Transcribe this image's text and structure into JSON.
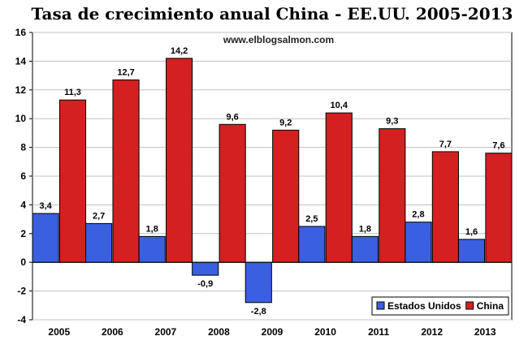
{
  "chart_data": {
    "type": "bar",
    "title": "Tasa de crecimiento anual China - EE.UU. 2005-2013",
    "watermark": "www.elblogsalmon.com",
    "categories": [
      "2005",
      "2006",
      "2007",
      "2008",
      "2009",
      "2010",
      "2011",
      "2012",
      "2013"
    ],
    "series": [
      {
        "name": "Estados Unidos",
        "color": "#3a5fe0",
        "values": [
          3.4,
          2.7,
          1.8,
          -0.9,
          -2.8,
          2.5,
          1.8,
          2.8,
          1.6
        ],
        "labels": [
          "3,4",
          "2,7",
          "1,8",
          "-0,9",
          "-2,8",
          "2,5",
          "1,8",
          "2,8",
          "1,6"
        ]
      },
      {
        "name": "China",
        "color": "#d42020",
        "values": [
          11.3,
          12.7,
          14.2,
          9.6,
          9.2,
          10.4,
          9.3,
          7.7,
          7.6
        ],
        "labels": [
          "11,3",
          "12,7",
          "14,2",
          "9,6",
          "9,2",
          "10,4",
          "9,3",
          "7,7",
          "7,6"
        ]
      }
    ],
    "xlabel": "",
    "ylabel": "",
    "ylim": [
      -4,
      16
    ],
    "yticks": [
      "-4",
      "-2",
      "0",
      "2",
      "4",
      "6",
      "8",
      "10",
      "12",
      "14",
      "16"
    ],
    "grid": true,
    "legend_position": "bottom-right"
  }
}
